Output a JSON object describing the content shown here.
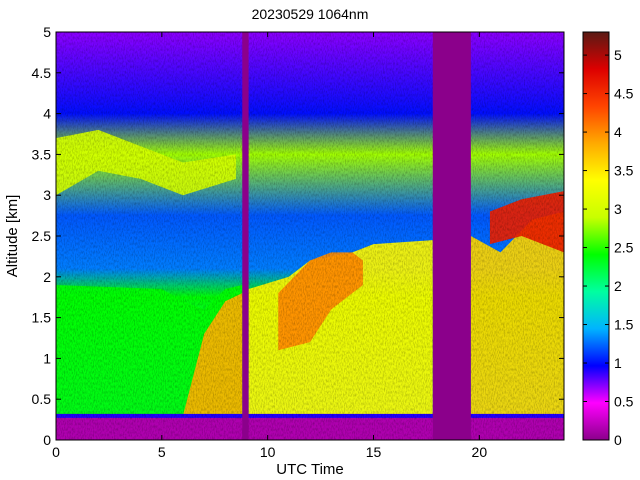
{
  "chart_data": {
    "type": "heatmap",
    "title": "20230529 1064nm",
    "xlabel": "UTC Time",
    "ylabel": "Altitude [km]",
    "xlim": [
      0,
      24
    ],
    "ylim": [
      0,
      5
    ],
    "x_ticks": [
      0,
      5,
      10,
      15,
      20
    ],
    "x_tick_labels": [
      "0",
      "5",
      "10",
      "15",
      "20"
    ],
    "y_ticks": [
      0,
      0.5,
      1,
      1.5,
      2,
      2.5,
      3,
      3.5,
      4,
      4.5,
      5
    ],
    "y_tick_labels": [
      "0",
      "0.5",
      "1",
      "1.5",
      "2",
      "2.5",
      "3",
      "3.5",
      "4",
      "4.5",
      "5"
    ],
    "colorbar": {
      "range": [
        0,
        5.3
      ],
      "ticks": [
        0,
        0.5,
        1,
        1.5,
        2,
        2.5,
        3,
        3.5,
        4,
        4.5,
        5
      ],
      "tick_labels": [
        "0",
        "0.5",
        "1",
        "1.5",
        "2",
        "2.5",
        "3",
        "3.5",
        "4",
        "4.5",
        "5"
      ],
      "colormap": [
        "#8b008b",
        "#ff00ff",
        "#0000ff",
        "#00b4ff",
        "#00ffa0",
        "#00ff00",
        "#c8ff00",
        "#ffff00",
        "#ffaa00",
        "#ff4400",
        "#dd0000",
        "#5a1a14"
      ]
    },
    "grid": false,
    "no_data_fill": "#8b008b",
    "no_data_intervals": [
      [
        8.8,
        9.1
      ],
      [
        17.8,
        19.6
      ]
    ],
    "layers": [
      {
        "x": [
          0,
          5,
          6,
          7,
          8,
          8.8
        ],
        "top": [
          1.9,
          1.85,
          1.7,
          1.6,
          1.85,
          1.9
        ],
        "bottom": [
          0.3,
          0.3,
          0.25,
          0.25,
          0.25,
          0.25
        ],
        "value": 2.4
      },
      {
        "x": [
          6,
          7,
          8,
          8.8
        ],
        "top": [
          0.3,
          1.3,
          1.7,
          1.8
        ],
        "bottom": [
          0.3,
          0.3,
          0.3,
          0.3
        ],
        "value": 3.8
      },
      {
        "x": [
          9.1,
          11,
          12,
          14,
          15,
          17.8
        ],
        "top": [
          1.85,
          2.0,
          2.2,
          2.3,
          2.4,
          2.45
        ],
        "bottom": [
          0.3,
          0.3,
          0.3,
          0.3,
          0.3,
          0.3
        ],
        "value": 3.4
      },
      {
        "x": [
          10.5,
          12,
          13,
          14,
          14.5
        ],
        "top": [
          1.8,
          2.2,
          2.3,
          2.3,
          2.2
        ],
        "bottom": [
          1.1,
          1.2,
          1.6,
          1.8,
          1.9
        ],
        "value": 4.0
      },
      {
        "x": [
          0,
          2,
          4,
          6,
          8.5
        ],
        "top": [
          3.7,
          3.8,
          3.6,
          3.4,
          3.5
        ],
        "bottom": [
          3.0,
          3.3,
          3.2,
          3.0,
          3.2
        ],
        "value": 3.0
      },
      {
        "x": [
          19.6,
          21,
          22.5,
          24
        ],
        "top": [
          2.5,
          2.3,
          2.7,
          2.8
        ],
        "bottom": [
          0.3,
          0.3,
          0.3,
          0.3
        ],
        "value": 3.6
      },
      {
        "x": [
          20.5,
          22,
          24
        ],
        "top": [
          2.8,
          2.95,
          3.05
        ],
        "bottom": [
          2.4,
          2.5,
          2.3
        ],
        "value": 4.6
      }
    ]
  }
}
